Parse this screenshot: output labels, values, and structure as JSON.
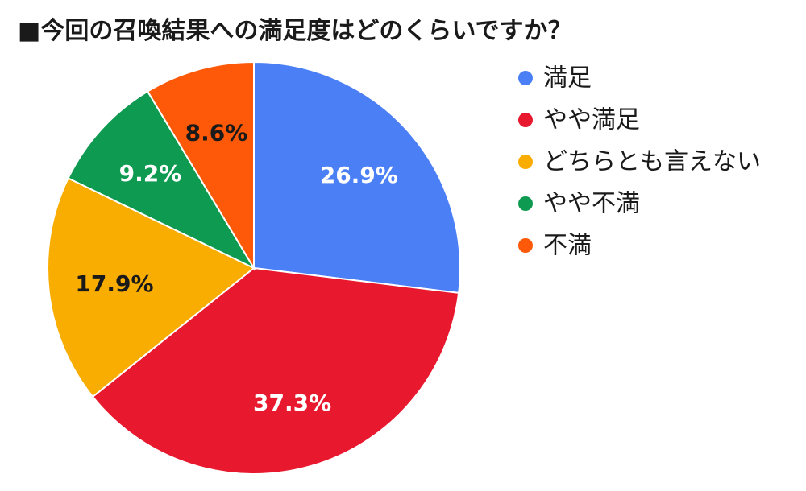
{
  "chart_data": {
    "type": "pie",
    "title": "■今回の召喚結果への満足度はどのくらいですか？",
    "legend_position": "right",
    "slices": [
      {
        "label": "満足",
        "value": 26.9,
        "value_label": "26.9%",
        "color": "#4a7ff5",
        "label_color": "#ffffff"
      },
      {
        "label": "やや満足",
        "value": 37.3,
        "value_label": "37.3%",
        "color": "#e8192e",
        "label_color": "#ffffff"
      },
      {
        "label": "どちらとも言えない",
        "value": 17.9,
        "value_label": "17.9%",
        "color": "#f9ad00",
        "label_color": "#1a1a1a"
      },
      {
        "label": "やや不満",
        "value": 9.2,
        "value_label": "9.2%",
        "color": "#0e9a50",
        "label_color": "#ffffff"
      },
      {
        "label": "不満",
        "value": 8.6,
        "value_label": "8.6%",
        "color": "#fd5908",
        "label_color": "#1a1a1a"
      }
    ]
  }
}
